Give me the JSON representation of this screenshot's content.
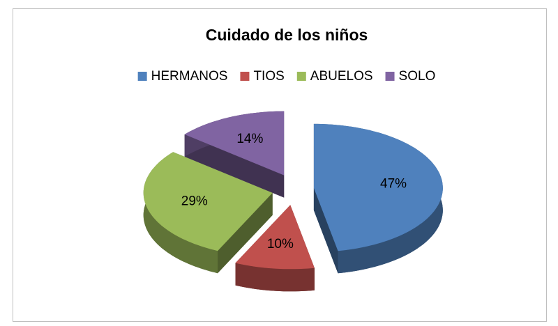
{
  "chart_data": {
    "type": "pie",
    "title": "Cuidado de los niños",
    "categories": [
      "HERMANOS",
      "TIOS",
      "ABUELOS",
      "SOLO"
    ],
    "values": [
      47,
      10,
      29,
      14
    ],
    "value_labels": [
      "47%",
      "10%",
      "29%",
      "14%"
    ],
    "colors": [
      "#4f81bd",
      "#c0504d",
      "#9bbb59",
      "#8064a2"
    ],
    "legend": "top",
    "exploded": true,
    "three_d": true
  }
}
